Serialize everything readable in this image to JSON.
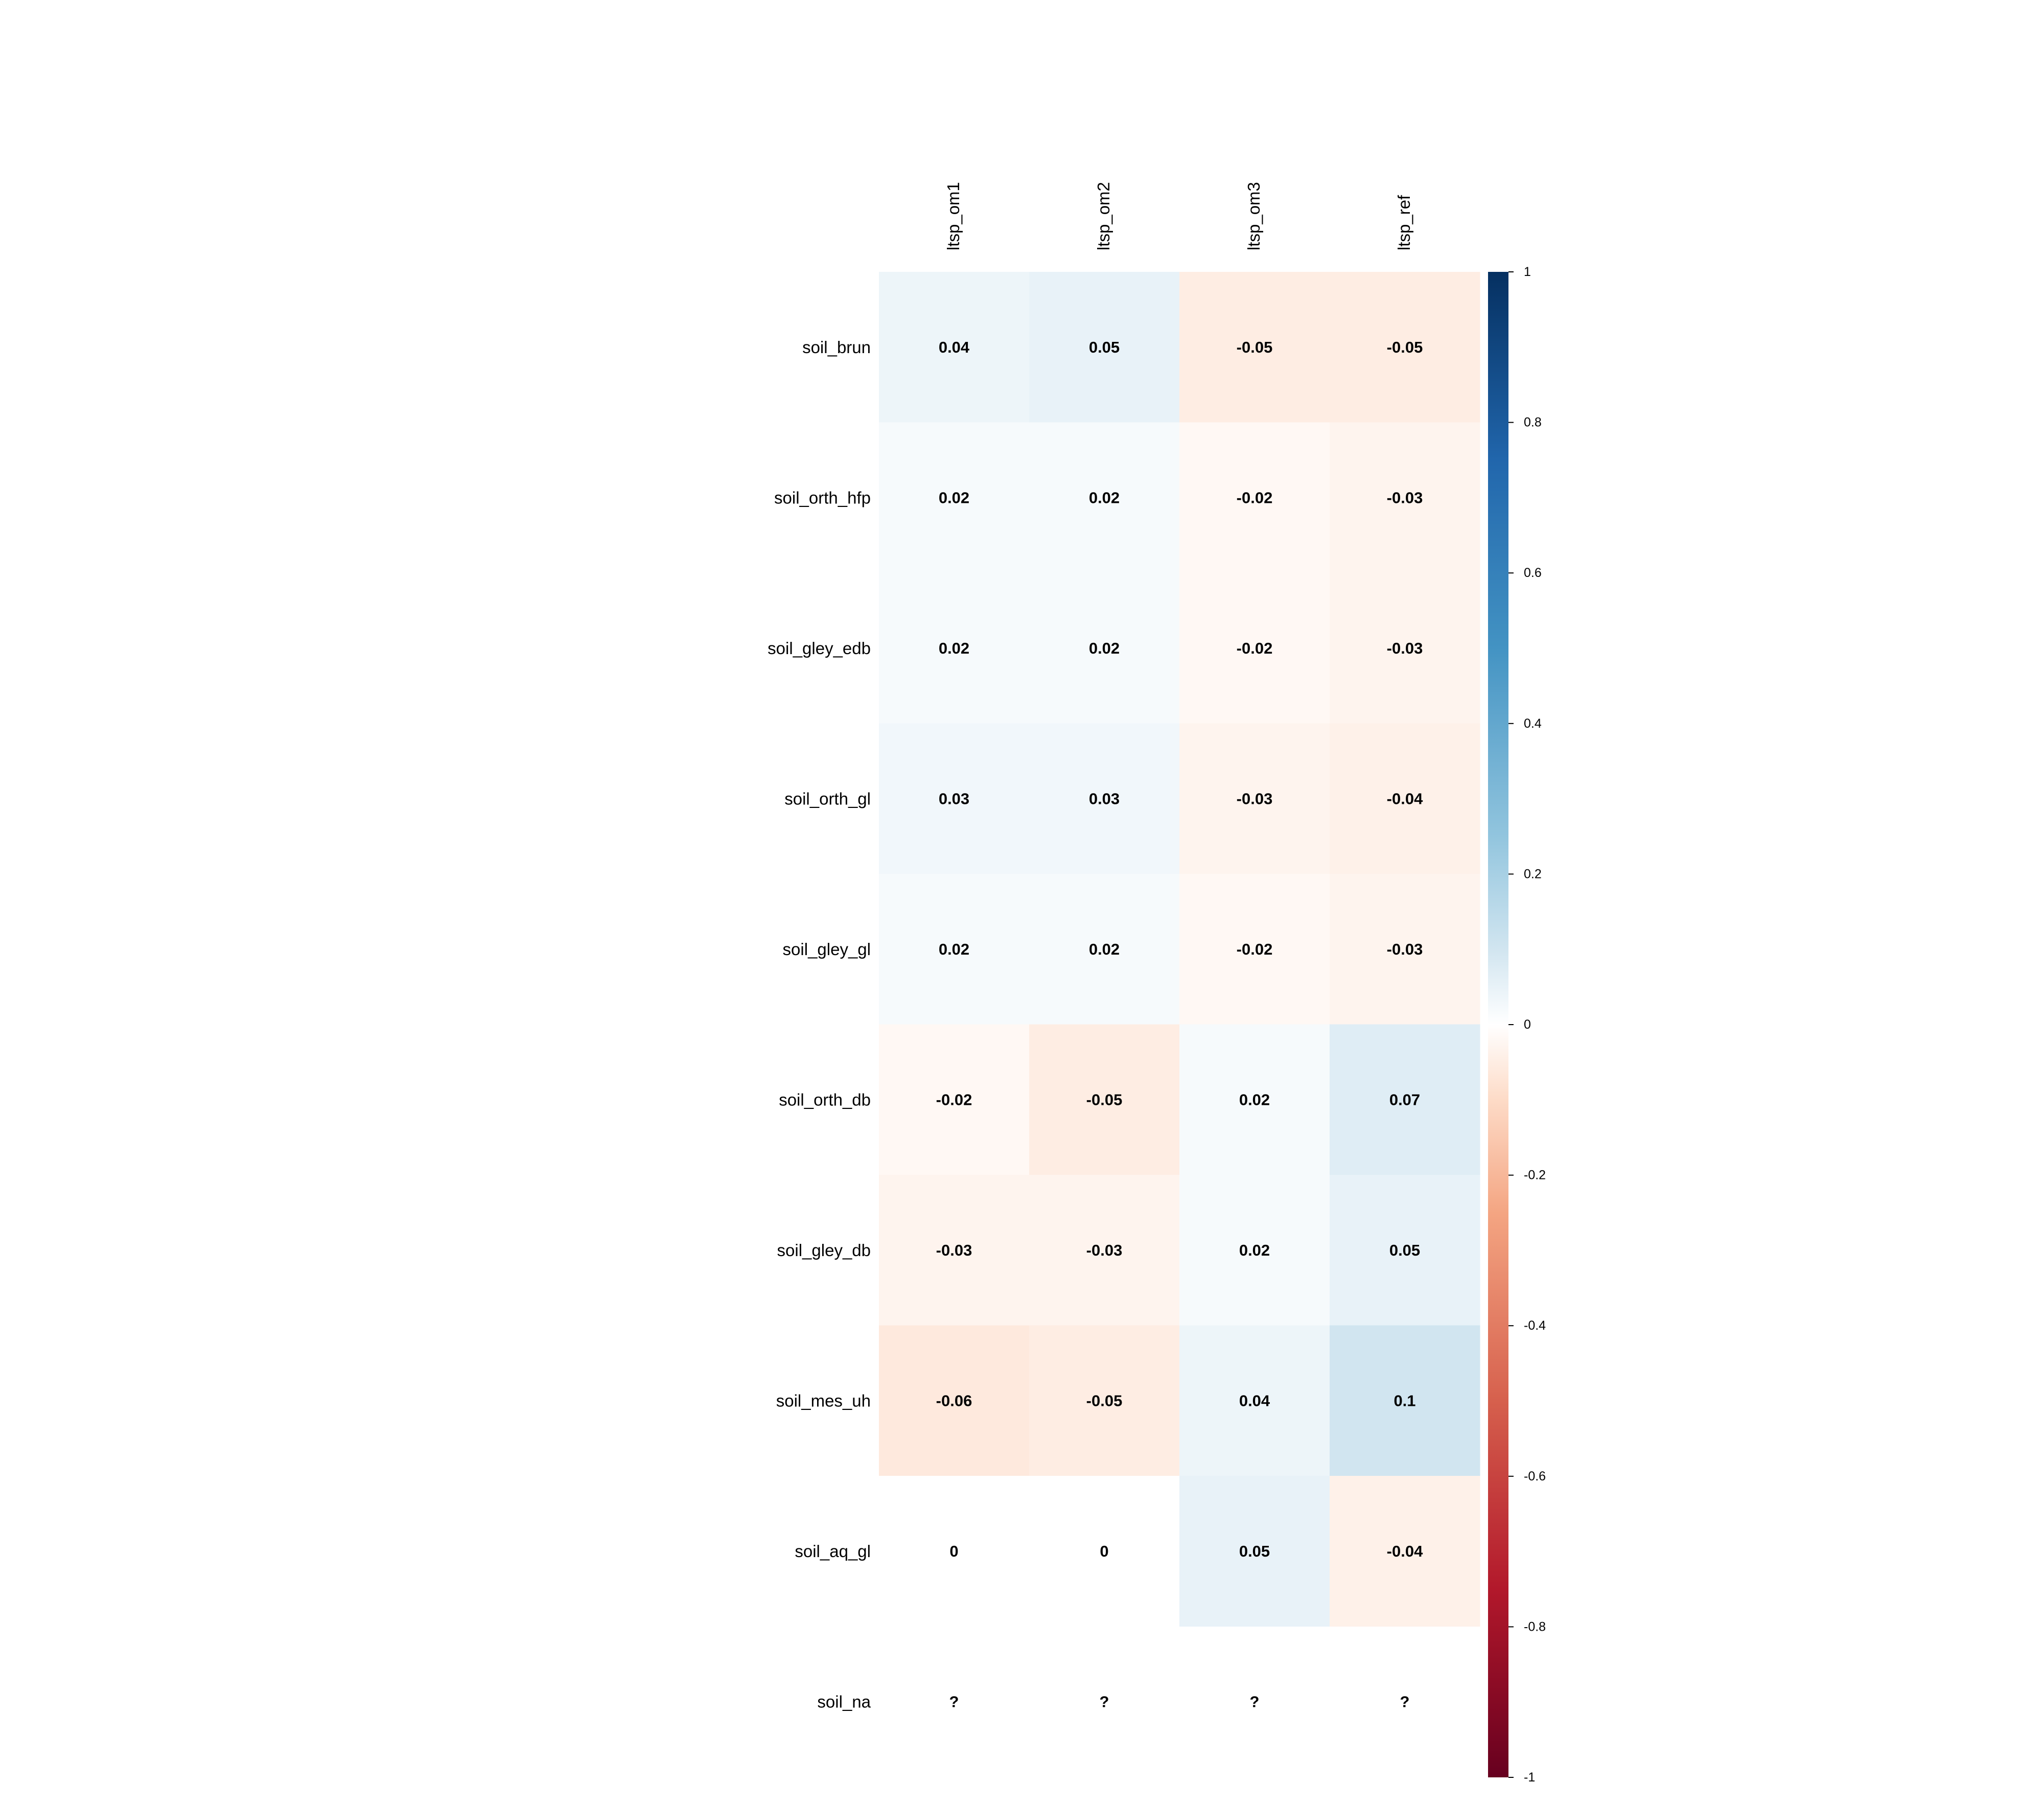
{
  "chart_data": {
    "type": "heatmap",
    "title": "",
    "columns": [
      "ltsp_om1",
      "ltsp_om2",
      "ltsp_om3",
      "ltsp_ref"
    ],
    "rows": [
      "soil_brun",
      "soil_orth_hfp",
      "soil_gley_edb",
      "soil_orth_gl",
      "soil_gley_gl",
      "soil_orth_db",
      "soil_gley_db",
      "soil_mes_uh",
      "soil_aq_gl",
      "soil_na"
    ],
    "values": [
      [
        0.04,
        0.05,
        -0.05,
        -0.05
      ],
      [
        0.02,
        0.02,
        -0.02,
        -0.03
      ],
      [
        0.02,
        0.02,
        -0.02,
        -0.03
      ],
      [
        0.03,
        0.03,
        -0.03,
        -0.04
      ],
      [
        0.02,
        0.02,
        -0.02,
        -0.03
      ],
      [
        -0.02,
        -0.05,
        0.02,
        0.07
      ],
      [
        -0.03,
        -0.03,
        0.02,
        0.05
      ],
      [
        -0.06,
        -0.05,
        0.04,
        0.1
      ],
      [
        0,
        0,
        0.05,
        -0.04
      ],
      [
        null,
        null,
        null,
        null
      ]
    ],
    "missing_label": "?",
    "color_scale": {
      "range": [
        -1,
        1
      ],
      "ticks": [
        "1",
        "0.8",
        "0.6",
        "0.4",
        "0.2",
        "0",
        "-0.2",
        "-0.4",
        "-0.6",
        "-0.8",
        "-1"
      ],
      "stops": [
        {
          "value": -1,
          "color": "#67001f"
        },
        {
          "value": -0.75,
          "color": "#b2182b"
        },
        {
          "value": -0.5,
          "color": "#d6604d"
        },
        {
          "value": -0.25,
          "color": "#f4a582"
        },
        {
          "value": -0.1,
          "color": "#fddbc7"
        },
        {
          "value": 0,
          "color": "#ffffff"
        },
        {
          "value": 0.1,
          "color": "#d1e5f0"
        },
        {
          "value": 0.25,
          "color": "#92c5de"
        },
        {
          "value": 0.5,
          "color": "#4393c3"
        },
        {
          "value": 0.75,
          "color": "#2166ac"
        },
        {
          "value": 1,
          "color": "#053061"
        }
      ],
      "legend_placement": "right"
    }
  }
}
